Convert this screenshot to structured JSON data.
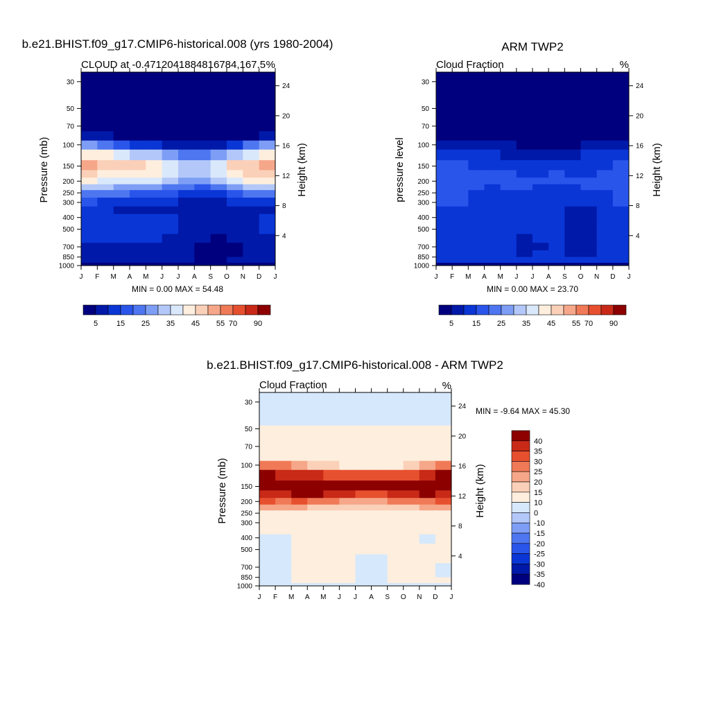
{
  "palette": {
    "seq": [
      "#00007f",
      "#0019a8",
      "#0a36d6",
      "#2a55ea",
      "#4d76f0",
      "#7e9ef5",
      "#b3c8f9",
      "#dae8fb",
      "#feeede",
      "#fbd0b8",
      "#f6a789",
      "#f07a57",
      "#e7502f",
      "#c82a17",
      "#8c0000"
    ],
    "diff": [
      "#00007f",
      "#0019a8",
      "#0a36d6",
      "#2a55ea",
      "#4d76f0",
      "#7e9ef5",
      "#b3c8f9",
      "#d6e8fb",
      "#feeede",
      "#fbd0b8",
      "#f6a789",
      "#f07a57",
      "#e7502f",
      "#c82a17",
      "#8c0000"
    ]
  },
  "chart_data": [
    {
      "type": "heatmap",
      "title": "b.e21.BHIST.f09_g17.CMIP6-historical.008 (yrs 1980-2004)",
      "left_string": "CLOUD at -0.4712041884816784,167.5",
      "right_string": "%",
      "ylabel": "Pressure (mb)",
      "ylabel_right": "Height (km)",
      "x_ticks": [
        "J",
        "F",
        "M",
        "A",
        "M",
        "J",
        "J",
        "A",
        "S",
        "O",
        "N",
        "D",
        "J"
      ],
      "y_ticks": [
        "30",
        "50",
        "70",
        "100",
        "150",
        "200",
        "250",
        "300",
        "400",
        "500",
        "700",
        "850",
        "1000"
      ],
      "y_ticks_right": [
        "24",
        "20",
        "16",
        "12",
        "8",
        "4"
      ],
      "y_range_mb": [
        1000,
        25
      ],
      "summary": "MIN =   0.00 MAX =  54.48",
      "levels_mb": [
        25,
        40,
        55,
        70,
        85,
        100,
        120,
        150,
        175,
        200,
        225,
        250,
        300,
        350,
        400,
        500,
        600,
        700,
        800,
        900,
        1000
      ],
      "months": [
        "J",
        "F",
        "M",
        "A",
        "M",
        "J",
        "J",
        "A",
        "S",
        "O",
        "N",
        "D"
      ],
      "values": [
        [
          0,
          0,
          0,
          0,
          0,
          0,
          0,
          0,
          0,
          0,
          0,
          0
        ],
        [
          0,
          0,
          0,
          0,
          0,
          0,
          0,
          0,
          0,
          0,
          0,
          0
        ],
        [
          0,
          0,
          0,
          0,
          0,
          0,
          0,
          0,
          0,
          0,
          0,
          0
        ],
        [
          3,
          2,
          1,
          1,
          1,
          1,
          1,
          1,
          1,
          1,
          1,
          2
        ],
        [
          6,
          5,
          4,
          3,
          3,
          2,
          2,
          2,
          2,
          3,
          4,
          6
        ],
        [
          27,
          24,
          18,
          14,
          11,
          9,
          8,
          8,
          9,
          13,
          20,
          27
        ],
        [
          43,
          40,
          36,
          33,
          30,
          26,
          22,
          22,
          25,
          32,
          38,
          43
        ],
        [
          51,
          48,
          46,
          45,
          43,
          38,
          32,
          33,
          37,
          45,
          49,
          53
        ],
        [
          46,
          44,
          43,
          42,
          40,
          36,
          32,
          32,
          35,
          42,
          46,
          48
        ],
        [
          41,
          39,
          38,
          37,
          35,
          32,
          29,
          29,
          31,
          37,
          41,
          42
        ],
        [
          32,
          30,
          29,
          27,
          25,
          23,
          20,
          19,
          21,
          26,
          30,
          31
        ],
        [
          24,
          22,
          21,
          19,
          18,
          16,
          14,
          13,
          14,
          18,
          21,
          23
        ],
        [
          15,
          14,
          13,
          12,
          11,
          10,
          8,
          7,
          8,
          10,
          12,
          13
        ],
        [
          10,
          10,
          9,
          9,
          8,
          7,
          6,
          5,
          5,
          6,
          8,
          9
        ],
        [
          12,
          12,
          13,
          13,
          12,
          12,
          8,
          6,
          5,
          6,
          9,
          11
        ],
        [
          11,
          12,
          13,
          13,
          12,
          11,
          7,
          5,
          5,
          6,
          9,
          10
        ],
        [
          10,
          10,
          11,
          10,
          10,
          9,
          7,
          5,
          4,
          5,
          8,
          9
        ],
        [
          9,
          9,
          9,
          9,
          8,
          7,
          5,
          3,
          2,
          3,
          6,
          8
        ],
        [
          8,
          8,
          8,
          8,
          7,
          6,
          5,
          2,
          1,
          2,
          5,
          7
        ],
        [
          7,
          7,
          7,
          7,
          7,
          6,
          6,
          4,
          4,
          5,
          6,
          7
        ],
        [
          2,
          2,
          2,
          2,
          2,
          2,
          2,
          2,
          2,
          2,
          2,
          2
        ]
      ],
      "colorbar": {
        "labels": [
          "5",
          "15",
          "25",
          "35",
          "45",
          "55",
          "70",
          "90"
        ]
      }
    },
    {
      "type": "heatmap",
      "title": "ARM TWP2",
      "left_string": "Cloud Fraction",
      "right_string": "%",
      "ylabel": "pressure level",
      "ylabel_right": "Height (km)",
      "x_ticks": [
        "J",
        "F",
        "M",
        "A",
        "M",
        "J",
        "J",
        "A",
        "S",
        "O",
        "N",
        "D",
        "J"
      ],
      "y_ticks": [
        "30",
        "50",
        "70",
        "100",
        "150",
        "200",
        "250",
        "300",
        "400",
        "500",
        "700",
        "850",
        "1000"
      ],
      "y_ticks_right": [
        "24",
        "20",
        "16",
        "12",
        "8",
        "4"
      ],
      "y_range_mb": [
        1000,
        25
      ],
      "summary": "MIN =   0.00 MAX =  23.70",
      "levels_mb": [
        25,
        40,
        55,
        70,
        85,
        100,
        120,
        150,
        175,
        200,
        225,
        250,
        300,
        350,
        400,
        500,
        600,
        700,
        800,
        900,
        1000
      ],
      "months": [
        "J",
        "F",
        "M",
        "A",
        "M",
        "J",
        "J",
        "A",
        "S",
        "O",
        "N",
        "D"
      ],
      "values": [
        [
          0,
          0,
          0,
          0,
          0,
          0,
          0,
          0,
          0,
          0,
          0,
          0
        ],
        [
          0,
          0,
          0,
          0,
          0,
          0,
          0,
          0,
          0,
          0,
          0,
          0
        ],
        [
          0,
          0,
          0,
          0,
          0,
          0,
          0,
          0,
          0,
          0,
          0,
          0
        ],
        [
          1,
          1,
          1,
          1,
          0,
          0,
          0,
          0,
          0,
          1,
          1,
          1
        ],
        [
          4,
          3,
          2,
          1,
          1,
          1,
          1,
          1,
          1,
          1,
          2,
          4
        ],
        [
          9,
          9,
          8,
          7,
          5,
          4,
          4,
          4,
          4,
          6,
          7,
          8
        ],
        [
          13,
          13,
          12,
          11,
          9,
          8,
          8,
          9,
          7,
          11,
          12,
          12
        ],
        [
          15,
          15,
          14,
          14,
          13,
          11,
          12,
          13,
          11,
          13,
          14,
          15
        ],
        [
          17,
          16,
          15,
          15,
          16,
          14,
          14,
          15,
          13,
          14,
          15,
          17
        ],
        [
          19,
          18,
          15,
          15,
          17,
          16,
          15,
          15,
          15,
          15,
          17,
          18
        ],
        [
          18,
          17,
          15,
          14,
          15,
          15,
          14,
          14,
          14,
          15,
          16,
          17
        ],
        [
          18,
          16,
          14,
          13,
          14,
          13,
          13,
          13,
          12,
          13,
          14,
          16
        ],
        [
          16,
          15,
          13,
          12,
          13,
          12,
          12,
          12,
          10,
          12,
          13,
          15
        ],
        [
          14,
          14,
          13,
          12,
          12,
          11,
          11,
          11,
          8,
          9,
          12,
          14
        ],
        [
          14,
          14,
          13,
          13,
          11,
          10,
          11,
          11,
          6,
          7,
          11,
          13
        ],
        [
          14,
          14,
          13,
          12,
          10,
          10,
          10,
          10,
          5,
          6,
          11,
          13
        ],
        [
          14,
          14,
          13,
          12,
          10,
          9,
          10,
          10,
          5,
          6,
          10,
          12
        ],
        [
          12,
          12,
          12,
          11,
          10,
          9,
          9,
          10,
          6,
          7,
          10,
          11
        ],
        [
          11,
          11,
          11,
          10,
          10,
          9,
          10,
          10,
          7,
          8,
          10,
          11
        ],
        [
          11,
          11,
          11,
          11,
          11,
          11,
          11,
          11,
          10,
          10,
          11,
          11
        ],
        [
          4,
          4,
          4,
          4,
          4,
          4,
          4,
          4,
          4,
          4,
          4,
          4
        ]
      ],
      "colorbar": {
        "labels": [
          "5",
          "15",
          "25",
          "35",
          "45",
          "55",
          "70",
          "90"
        ]
      }
    },
    {
      "type": "heatmap",
      "title": "b.e21.BHIST.f09_g17.CMIP6-historical.008 - ARM TWP2",
      "left_string": "Cloud Fraction",
      "right_string": "%",
      "ylabel": "Pressure (mb)",
      "ylabel_right": "Height (km)",
      "x_ticks": [
        "J",
        "F",
        "M",
        "A",
        "M",
        "J",
        "J",
        "A",
        "S",
        "O",
        "N",
        "D",
        "J"
      ],
      "y_ticks": [
        "30",
        "50",
        "70",
        "100",
        "150",
        "200",
        "250",
        "300",
        "400",
        "500",
        "700",
        "850",
        "1000"
      ],
      "y_ticks_right": [
        "24",
        "20",
        "16",
        "12",
        "8",
        "4"
      ],
      "y_range_mb": [
        1000,
        25
      ],
      "summary": "MIN =  -9.64 MAX =  45.30",
      "levels_mb": [
        25,
        40,
        55,
        70,
        85,
        100,
        120,
        150,
        175,
        200,
        225,
        250,
        300,
        350,
        400,
        500,
        600,
        700,
        800,
        900,
        1000
      ],
      "months": [
        "J",
        "F",
        "M",
        "A",
        "M",
        "J",
        "J",
        "A",
        "S",
        "O",
        "N",
        "D"
      ],
      "values": [
        [
          -1,
          -1,
          -1,
          -1,
          -1,
          -1,
          -1,
          -1,
          -1,
          -1,
          -1,
          -1
        ],
        [
          -1,
          -1,
          -1,
          -1,
          -1,
          -1,
          -1,
          -1,
          -1,
          -1,
          -1,
          -1
        ],
        [
          2,
          2,
          2,
          2,
          2,
          2,
          2,
          2,
          2,
          2,
          2,
          2
        ],
        [
          4,
          4,
          3,
          3,
          3,
          3,
          3,
          3,
          3,
          3,
          4,
          4
        ],
        [
          8,
          7,
          6,
          5,
          5,
          4,
          4,
          4,
          4,
          5,
          7,
          8
        ],
        [
          22,
          20,
          15,
          12,
          10,
          9,
          8,
          8,
          9,
          11,
          17,
          23
        ],
        [
          35,
          33,
          32,
          30,
          29,
          27,
          25,
          26,
          26,
          29,
          33,
          36
        ],
        [
          40,
          39,
          44,
          45,
          43,
          38,
          35,
          36,
          37,
          42,
          43,
          41
        ],
        [
          33,
          33,
          36,
          37,
          33,
          30,
          29,
          29,
          30,
          33,
          35,
          34
        ],
        [
          25,
          24,
          25,
          24,
          20,
          19,
          18,
          19,
          20,
          22,
          24,
          26
        ],
        [
          16,
          15,
          15,
          14,
          12,
          11,
          10,
          11,
          12,
          13,
          15,
          16
        ],
        [
          9,
          8,
          9,
          8,
          7,
          6,
          6,
          6,
          7,
          7,
          8,
          9
        ],
        [
          4,
          4,
          4,
          4,
          3,
          3,
          3,
          3,
          3,
          4,
          4,
          4
        ],
        [
          2,
          2,
          2,
          2,
          2,
          2,
          2,
          2,
          2,
          2,
          2,
          2
        ],
        [
          -1,
          -1,
          3,
          4,
          3,
          2,
          1,
          1,
          3,
          3,
          -1,
          2
        ],
        [
          -2,
          -2,
          2,
          3,
          2,
          1,
          0,
          0,
          3,
          3,
          2,
          2
        ],
        [
          -3,
          -1,
          2,
          2,
          1,
          0,
          -1,
          -1,
          2,
          2,
          1,
          1
        ],
        [
          -3,
          -1,
          1,
          2,
          1,
          0,
          -2,
          -2,
          1,
          1,
          1,
          -1
        ],
        [
          -3,
          -2,
          1,
          2,
          1,
          0,
          -2,
          -3,
          1,
          1,
          1,
          -1
        ],
        [
          -2,
          -2,
          1,
          1,
          1,
          0,
          -1,
          -2,
          1,
          1,
          1,
          0
        ],
        [
          -1,
          -1,
          -1,
          -1,
          -1,
          -1,
          -1,
          -1,
          -1,
          -1,
          -1,
          -1
        ]
      ],
      "colorbar": {
        "labels": [
          "40",
          "35",
          "30",
          "25",
          "20",
          "15",
          "10",
          "0",
          "-10",
          "-15",
          "-20",
          "-25",
          "-30",
          "-35",
          "-40"
        ]
      }
    }
  ]
}
